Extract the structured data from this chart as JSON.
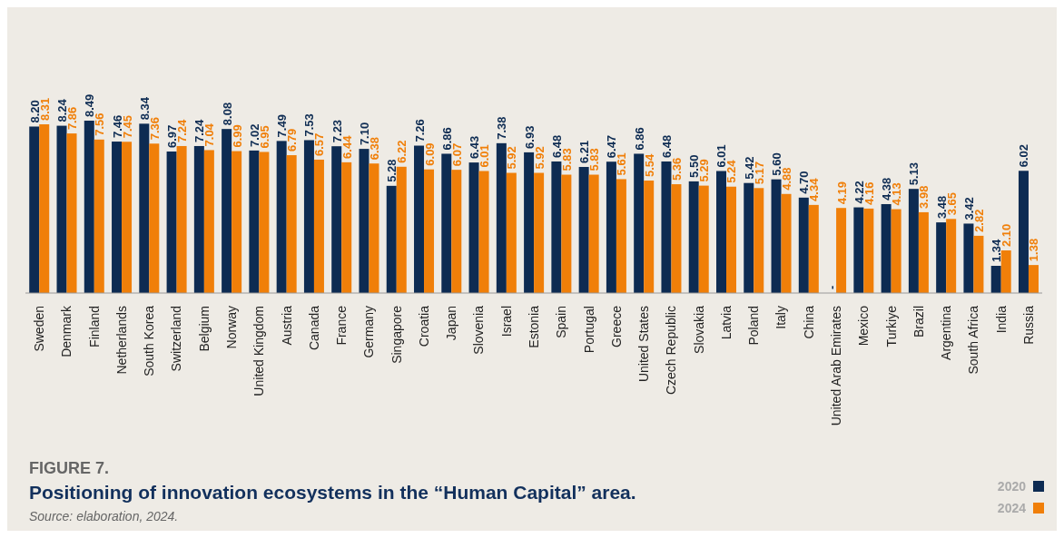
{
  "chart_data": {
    "type": "bar",
    "title": "Positioning of innovation ecosystems in the “Human Capital” area.",
    "annotations": [
      "FIGURE 7.",
      "Source: elaboration, 2024."
    ],
    "categories": [
      "Sweden",
      "Denmark",
      "Finland",
      "Netherlands",
      "South Korea",
      "Switzerland",
      "Belgium",
      "Norway",
      "United Kingdom",
      "Austria",
      "Canada",
      "France",
      "Germany",
      "Singapore",
      "Croatia",
      "Japan",
      "Slovenia",
      "Israel",
      "Estonia",
      "Spain",
      "Portugal",
      "Greece",
      "United States",
      "Czech Republic",
      "Slovakia",
      "Latvia",
      "Poland",
      "Italy",
      "China",
      "United Arab Emirates",
      "Mexico",
      "Turkiye",
      "Brazil",
      "Argentina",
      "South Africa",
      "India",
      "Russia"
    ],
    "series": [
      {
        "name": "2020",
        "color": "#0d2b52",
        "values": [
          8.2,
          8.24,
          8.49,
          7.46,
          8.34,
          6.97,
          7.24,
          8.08,
          7.02,
          7.49,
          7.53,
          7.23,
          7.1,
          5.28,
          7.26,
          6.86,
          6.43,
          7.38,
          6.93,
          6.48,
          6.21,
          6.47,
          6.86,
          6.48,
          5.5,
          6.01,
          5.42,
          5.6,
          4.7,
          null,
          4.22,
          4.38,
          5.13,
          3.48,
          3.42,
          1.34,
          6.02
        ],
        "value_labels": [
          "8.20",
          "8.24",
          "8.49",
          "7.46",
          "8.34",
          "6.97",
          "7.24",
          "8.08",
          "7.02",
          "7.49",
          "7.53",
          "7.23",
          "7.10",
          "5.28",
          "7.26",
          "6.86",
          "6.43",
          "7.38",
          "6.93",
          "6.48",
          "6.21",
          "6.47",
          "6.86",
          "6.48",
          "5.50",
          "6.01",
          "5.42",
          "5.60",
          "4.70",
          "-",
          "4.22",
          "4.38",
          "5.13",
          "3.48",
          "3.42",
          "1.34",
          "6.02"
        ]
      },
      {
        "name": "2024",
        "color": "#f07f09",
        "values": [
          8.31,
          7.86,
          7.56,
          7.45,
          7.36,
          7.24,
          7.04,
          6.99,
          6.95,
          6.79,
          6.57,
          6.44,
          6.38,
          6.22,
          6.09,
          6.07,
          6.01,
          5.92,
          5.92,
          5.83,
          5.83,
          5.61,
          5.54,
          5.36,
          5.29,
          5.24,
          5.17,
          4.88,
          4.34,
          4.19,
          4.16,
          4.13,
          3.98,
          3.65,
          2.82,
          2.1,
          1.38
        ],
        "value_labels": [
          "8.31",
          "7.86",
          "7.56",
          "7.45",
          "7.36",
          "7.24",
          "7.04",
          "6.99",
          "6.95",
          "6.79",
          "6.57",
          "6.44",
          "6.38",
          "6.22",
          "6.09",
          "6.07",
          "6.01",
          "5.92",
          "5.92",
          "5.83",
          "5.83",
          "5.61",
          "5.54",
          "5.36",
          "5.29",
          "5.24",
          "5.17",
          "4.88",
          "4.34",
          "4.19",
          "4.16",
          "4.13",
          "3.98",
          "3.65",
          "2.82",
          "2.10",
          "1.38"
        ]
      }
    ],
    "legend": "bottom right",
    "grid": false
  }
}
